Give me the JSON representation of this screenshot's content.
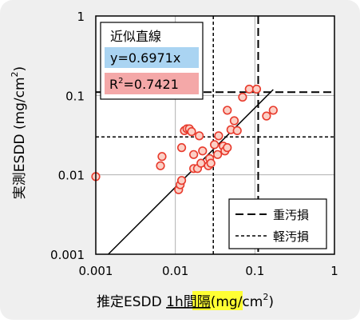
{
  "chart_data": {
    "type": "scatter",
    "xscale": "log",
    "yscale": "log",
    "xlim": [
      0.001,
      1
    ],
    "ylim": [
      0.001,
      1
    ],
    "x_ticks": [
      "0.001",
      "0.01",
      "0.1",
      "1"
    ],
    "y_ticks": [
      "0.001",
      "0.01",
      "0.1",
      "1"
    ],
    "grid": true,
    "xlabel": {
      "prefix": "推定ESDD ",
      "highlight": "1h間隔",
      "unit": "(mg/cm",
      "unit_sup": "2",
      "unit_close": ")"
    },
    "ylabel": {
      "text": "実測ESDD (mg/cm",
      "sup": "2",
      "close": ")"
    },
    "fit_box": {
      "title": "近似直線",
      "equation": "y=0.6971x",
      "r2_prefix": "R",
      "r2_sup": "2",
      "r2_value": "=0.7421",
      "equation_color": "#aad4f2",
      "r2_color": "#f4a8a8"
    },
    "fit": {
      "slope": 0.6971
    },
    "legend": {
      "placement": "bottom-right",
      "items": [
        {
          "label": "重汚損",
          "style": "dashed-heavy"
        },
        {
          "label": "軽汚損",
          "style": "dashed-light"
        }
      ]
    },
    "thresholds": [
      {
        "name": "重汚損",
        "value": 0.11,
        "style": "dashed-heavy"
      },
      {
        "name": "軽汚損",
        "value": 0.03,
        "style": "dashed-light"
      }
    ],
    "marker_fill": "#fbd0c6",
    "marker_stroke": "#e83a2c",
    "points": [
      [
        0.001,
        0.0095
      ],
      [
        0.0065,
        0.013
      ],
      [
        0.0068,
        0.017
      ],
      [
        0.011,
        0.0065
      ],
      [
        0.0115,
        0.0075
      ],
      [
        0.012,
        0.0085
      ],
      [
        0.012,
        0.022
      ],
      [
        0.013,
        0.036
      ],
      [
        0.014,
        0.038
      ],
      [
        0.015,
        0.038
      ],
      [
        0.016,
        0.035
      ],
      [
        0.017,
        0.012
      ],
      [
        0.017,
        0.018
      ],
      [
        0.019,
        0.012
      ],
      [
        0.02,
        0.031
      ],
      [
        0.021,
        0.014
      ],
      [
        0.022,
        0.02
      ],
      [
        0.026,
        0.013
      ],
      [
        0.027,
        0.016
      ],
      [
        0.028,
        0.014
      ],
      [
        0.031,
        0.024
      ],
      [
        0.034,
        0.018
      ],
      [
        0.035,
        0.031
      ],
      [
        0.04,
        0.023
      ],
      [
        0.042,
        0.02
      ],
      [
        0.045,
        0.022
      ],
      [
        0.045,
        0.065
      ],
      [
        0.05,
        0.037
      ],
      [
        0.055,
        0.048
      ],
      [
        0.06,
        0.036
      ],
      [
        0.07,
        0.095
      ],
      [
        0.085,
        0.12
      ],
      [
        0.105,
        0.12
      ],
      [
        0.14,
        0.055
      ],
      [
        0.17,
        0.065
      ]
    ]
  }
}
